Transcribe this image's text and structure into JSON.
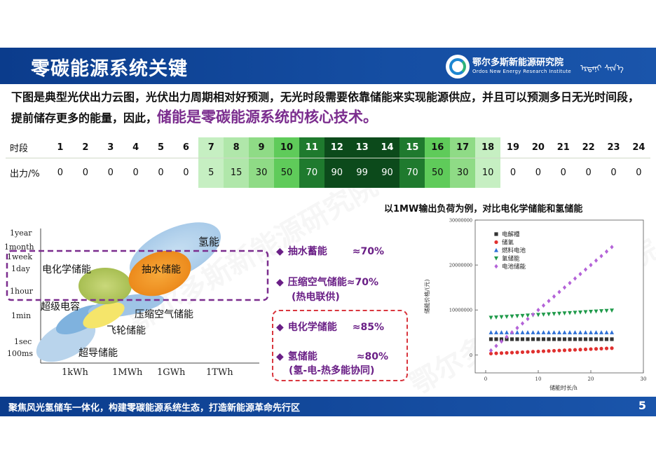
{
  "header": {
    "title": "零碳能源系统关键",
    "org_cn": "鄂尔多斯新能源研究院",
    "org_en": "Ordos New Energy Research Institute",
    "org_mongolian": "ᠡᠷᠳᠡᠨᠢ ᠰᠢᠨ᠎ᠡ"
  },
  "intro": {
    "text_1": "下图是典型光伏出力云图，光伏出力周期相对好预测，无光时段需要依靠储能来实现能源供应，并且可以预测多日无光时间段，提前储存更多的能量，因此，",
    "highlight": "储能是零碳能源系统的核心技术。"
  },
  "output_table": {
    "row1_label": "时段",
    "row2_label": "出力/%",
    "hours": [
      "1",
      "2",
      "3",
      "4",
      "5",
      "6",
      "7",
      "8",
      "9",
      "10",
      "11",
      "12",
      "13",
      "14",
      "15",
      "16",
      "17",
      "18",
      "19",
      "20",
      "21",
      "22",
      "23",
      "24"
    ],
    "output": [
      "0",
      "0",
      "0",
      "0",
      "0",
      "0",
      "5",
      "15",
      "30",
      "50",
      "70",
      "90",
      "99",
      "90",
      "70",
      "50",
      "30",
      "10",
      "0",
      "0",
      "0",
      "0",
      "0",
      "0"
    ]
  },
  "storage_chart": {
    "y_ticks": [
      "1year",
      "1month",
      "1week",
      "1day",
      "1hour",
      "1min",
      "1sec",
      "100ms"
    ],
    "x_ticks": [
      "1kWh",
      "1MWh",
      "1GWh",
      "1TWh"
    ],
    "labels": {
      "hydrogen": "氢能",
      "electrochem": "电化学储能",
      "pumped": "抽水储能",
      "supercap": "超级电容",
      "compressed": "压缩空气储能",
      "flywheel": "飞轮储能",
      "superconduct": "超导储能"
    }
  },
  "efficiency": {
    "items": [
      {
        "name": "抽水蓄能",
        "value": "≈70%"
      },
      {
        "name": "压缩空气储能≈70%",
        "value": ""
      },
      {
        "name": "(热电联供)",
        "value": ""
      },
      {
        "name": "电化学储能",
        "value": "≈85%"
      },
      {
        "name": "氢储能",
        "value": "≈80%"
      },
      {
        "name": "(氢-电-热多能协同)",
        "value": ""
      }
    ]
  },
  "compare_title": "以1MW输出负荷为例，对比电化学储能和氢储能",
  "chart_data": {
    "type": "scatter",
    "title": "",
    "xlabel": "储能时长/h",
    "ylabel": "储能价格/(元)",
    "xlim": [
      -2,
      30
    ],
    "ylim": [
      -4000000,
      30000000
    ],
    "x_ticks": [
      "0",
      "10",
      "20",
      "30"
    ],
    "y_ticks": [
      "0",
      "10000000",
      "20000000",
      "30000000"
    ],
    "legend_position": "top-left",
    "series": [
      {
        "name": "电解槽",
        "color": "#333333",
        "marker": "square",
        "x": [
          1,
          24
        ],
        "y": [
          3500000,
          3500000
        ]
      },
      {
        "name": "储氢",
        "color": "#e0302f",
        "marker": "circle",
        "x": [
          1,
          24
        ],
        "y": [
          300000,
          1500000
        ]
      },
      {
        "name": "燃料电池",
        "color": "#2d6fd6",
        "marker": "triangle-up",
        "x": [
          1,
          24
        ],
        "y": [
          5000000,
          5000000
        ]
      },
      {
        "name": "氢储能",
        "color": "#1f9a4a",
        "marker": "triangle-down",
        "x": [
          1,
          24
        ],
        "y": [
          8300000,
          9900000
        ]
      },
      {
        "name": "电池储能",
        "color": "#b463d8",
        "marker": "diamond",
        "x": [
          1,
          24
        ],
        "y": [
          1000000,
          24000000
        ]
      }
    ]
  },
  "footer": {
    "slogan": "聚焦风光氢储车一体化，构建零碳能源系统生态，打造新能源革命先行区",
    "page_number": "5"
  }
}
